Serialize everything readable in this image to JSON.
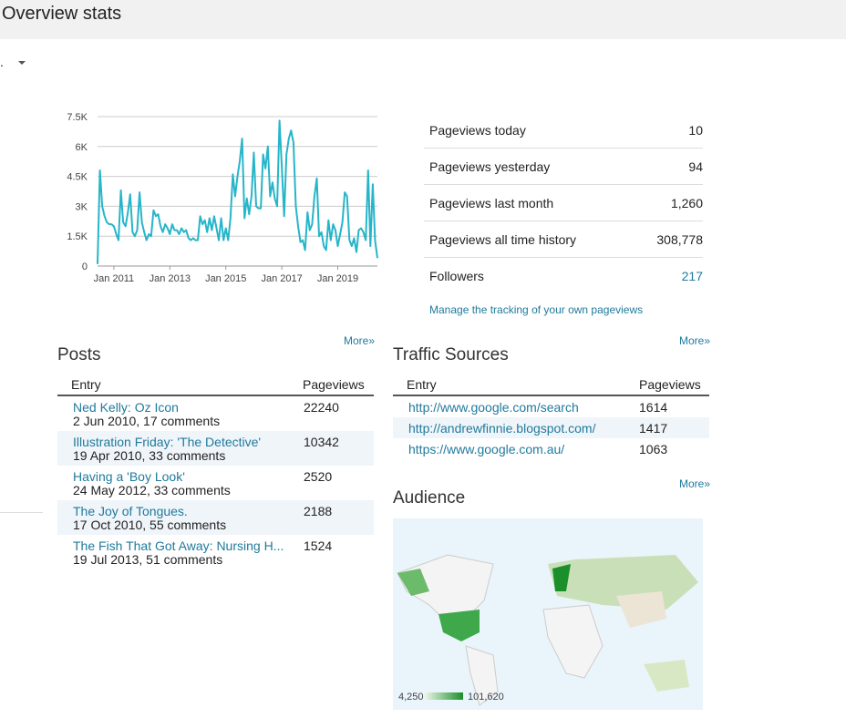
{
  "header": {
    "title": "Overview stats",
    "dropdown": "."
  },
  "chart_data": {
    "type": "line",
    "x": [
      "2010-06",
      "2010-07",
      "2010-08",
      "2010-09",
      "2010-10",
      "2010-11",
      "2010-12",
      "2011-01",
      "2011-02",
      "2011-03",
      "2011-04",
      "2011-05",
      "2011-06",
      "2011-07",
      "2011-08",
      "2011-09",
      "2011-10",
      "2011-11",
      "2011-12",
      "2012-01",
      "2012-02",
      "2012-03",
      "2012-04",
      "2012-05",
      "2012-06",
      "2012-07",
      "2012-08",
      "2012-09",
      "2012-10",
      "2012-11",
      "2012-12",
      "2013-01",
      "2013-02",
      "2013-03",
      "2013-04",
      "2013-05",
      "2013-06",
      "2013-07",
      "2013-08",
      "2013-09",
      "2013-10",
      "2013-11",
      "2013-12",
      "2014-01",
      "2014-02",
      "2014-03",
      "2014-04",
      "2014-05",
      "2014-06",
      "2014-07",
      "2014-08",
      "2014-09",
      "2014-10",
      "2014-11",
      "2014-12",
      "2015-01",
      "2015-02",
      "2015-03",
      "2015-04",
      "2015-05",
      "2015-06",
      "2015-07",
      "2015-08",
      "2015-09",
      "2015-10",
      "2015-11",
      "2015-12",
      "2016-01",
      "2016-02",
      "2016-03",
      "2016-04",
      "2016-05",
      "2016-06",
      "2016-07",
      "2016-08",
      "2016-09",
      "2016-10",
      "2016-11",
      "2016-12",
      "2017-01",
      "2017-02",
      "2017-03",
      "2017-04",
      "2017-05",
      "2017-06",
      "2017-07",
      "2017-08",
      "2017-09",
      "2017-10",
      "2017-11",
      "2017-12",
      "2018-01",
      "2018-02",
      "2018-03",
      "2018-04",
      "2018-05",
      "2018-06",
      "2018-07",
      "2018-08",
      "2018-09",
      "2018-10",
      "2018-11",
      "2018-12",
      "2019-01",
      "2019-02",
      "2019-03",
      "2019-04",
      "2019-05",
      "2019-06",
      "2019-07",
      "2019-08",
      "2019-09",
      "2019-10",
      "2019-11",
      "2019-12",
      "2020-01",
      "2020-02",
      "2020-03",
      "2020-04",
      "2020-05",
      "2020-06"
    ],
    "values": [
      100,
      4800,
      3000,
      2500,
      2200,
      2100,
      2100,
      2000,
      1600,
      1300,
      3800,
      2200,
      2000,
      2700,
      3600,
      1700,
      1500,
      1800,
      3700,
      2200,
      1700,
      1300,
      1600,
      1500,
      2800,
      2500,
      2600,
      2000,
      1700,
      2100,
      1900,
      1600,
      2100,
      1800,
      1800,
      1600,
      1900,
      1700,
      1800,
      1400,
      1300,
      1400,
      1300,
      1300,
      2500,
      2100,
      2300,
      1700,
      2400,
      1800,
      2500,
      1900,
      1300,
      2400,
      1300,
      1900,
      1300,
      2400,
      4600,
      3500,
      4500,
      5300,
      6400,
      2400,
      3400,
      2600,
      3500,
      5700,
      3000,
      2900,
      2900,
      5600,
      4900,
      6000,
      3500,
      4200,
      3400,
      3000,
      7300,
      5000,
      2500,
      5600,
      6400,
      6800,
      6200,
      3000,
      2000,
      1200,
      1300,
      800,
      2700,
      1800,
      2100,
      3500,
      4400,
      1500,
      1700,
      1000,
      800,
      2300,
      1300,
      2100,
      1800,
      1000,
      1600,
      2200,
      3700,
      3500,
      1300,
      1000,
      1400,
      700,
      1800,
      1900,
      1700,
      1300,
      4800,
      1000,
      4100,
      1300,
      400
    ],
    "color": "#26b5c9",
    "xlim": [
      "2010-06",
      "2020-06"
    ],
    "xticks": [
      {
        "value": "2011-01",
        "label": "Jan 2011"
      },
      {
        "value": "2013-01",
        "label": "Jan 2013"
      },
      {
        "value": "2015-01",
        "label": "Jan 2015"
      },
      {
        "value": "2017-01",
        "label": "Jan 2017"
      },
      {
        "value": "2019-01",
        "label": "Jan 2019"
      }
    ],
    "ylim": [
      0,
      7500
    ],
    "yticks": [
      0,
      {
        "value": 1500,
        "label": "1.5K"
      },
      {
        "value": 3000,
        "label": "3K"
      },
      {
        "value": 4500,
        "label": "4.5K"
      },
      {
        "value": 6000,
        "label": "6K"
      },
      {
        "value": 7500,
        "label": "7.5K"
      }
    ],
    "grid": true
  },
  "stats": {
    "rows": [
      [
        "Pageviews today",
        "10"
      ],
      [
        "Pageviews yesterday",
        "94"
      ],
      [
        "Pageviews last month",
        "1,260"
      ],
      [
        "Pageviews all time history",
        "308,778"
      ],
      [
        "Followers",
        "217"
      ]
    ],
    "manage": "Manage the tracking of your own pageviews"
  },
  "posts": {
    "title": "Posts",
    "more": "More»",
    "headers": [
      "Entry",
      "Pageviews"
    ],
    "rows": [
      {
        "entry": "Ned Kelly: Oz Icon",
        "meta": "2 Jun 2010, 17 comments",
        "pageviews": "22240"
      },
      {
        "entry": "Illustration Friday: 'The Detective'",
        "meta": "19 Apr 2010, 33 comments",
        "pageviews": "10342"
      },
      {
        "entry": "Having a 'Boy Look'",
        "meta": "24 May 2012, 33 comments",
        "pageviews": "2520"
      },
      {
        "entry": "The Joy of Tongues.",
        "meta": "17 Oct 2010, 55 comments",
        "pageviews": "2188"
      },
      {
        "entry": "The Fish That Got Away: Nursing H...",
        "meta": "19 Jul 2013, 51 comments",
        "pageviews": "1524"
      }
    ]
  },
  "traffic": {
    "title": "Traffic Sources",
    "more": "More»",
    "headers": [
      "Entry",
      "Pageviews"
    ],
    "rows": [
      [
        "http://www.google.com/search",
        "1614"
      ],
      [
        "http://andrewfinnie.blogspot.com/",
        "1417"
      ],
      [
        "https://www.google.com.au/",
        "1063"
      ]
    ]
  },
  "audience": {
    "title": "Audience",
    "more": "More»",
    "legend_min": "4,250",
    "legend_max": "101,620"
  }
}
